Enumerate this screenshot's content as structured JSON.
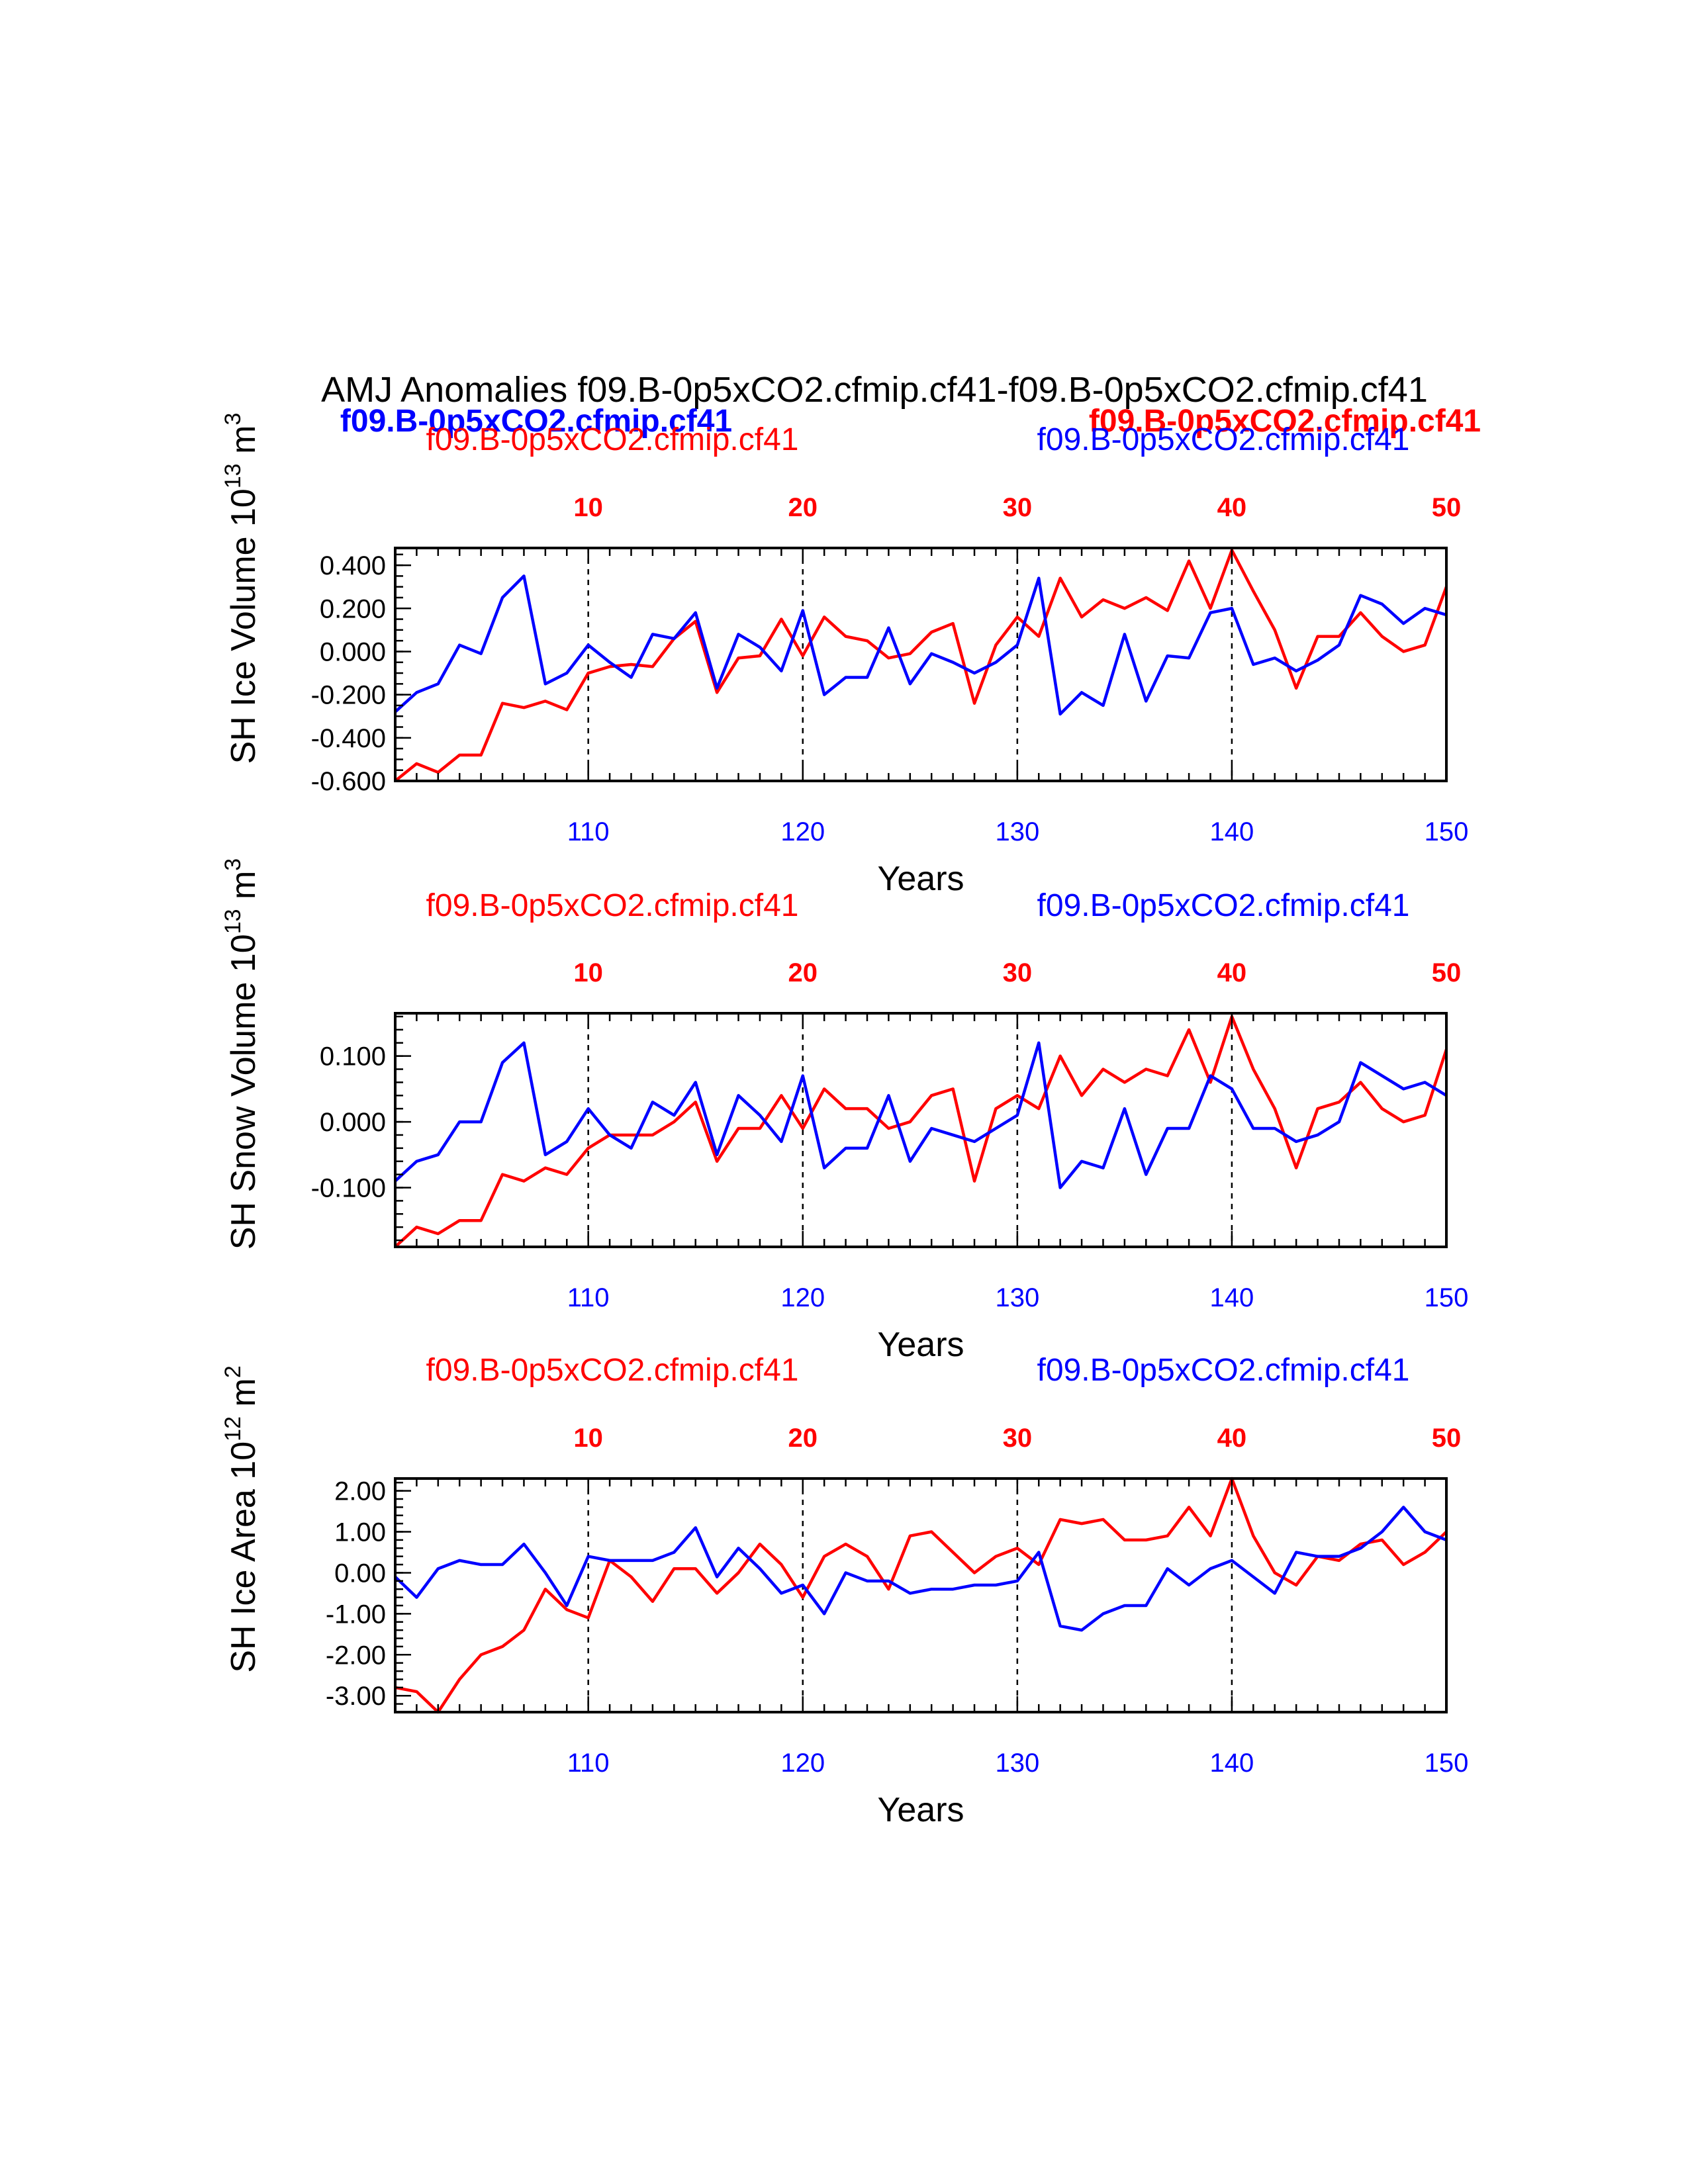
{
  "title": "AMJ Anomalies f09.B-0p5xCO2.cfmip.cf41-f09.B-0p5xCO2.cfmip.cf41",
  "legend": {
    "blue_bold": "f09.B-0p5xCO2.cfmip.cf41",
    "red_bold": "f09.B-0p5xCO2.cfmip.cf41"
  },
  "colors": {
    "series_a": "#ff0000",
    "series_b": "#0000ff",
    "axis": "#000000"
  },
  "chart_data": [
    {
      "type": "line",
      "ylabel_main": "SH Ice Volume 10",
      "ylabel_exp": "13",
      "ylabel_unit": " m",
      "ylabel_unit_exp": "3",
      "xlabel": "Years",
      "top_left_label": "f09.B-0p5xCO2.cfmip.cf41",
      "top_right_label": "f09.B-0p5xCO2.cfmip.cf41",
      "xlim_bottom": [
        101,
        150
      ],
      "xlim_top": [
        1,
        50
      ],
      "x_ticks_bottom": [
        110,
        120,
        130,
        140,
        150
      ],
      "x_ticks_top": [
        10,
        20,
        30,
        40,
        50
      ],
      "ylim": [
        -0.6,
        0.48
      ],
      "y_ticks": [
        -0.6,
        -0.4,
        -0.2,
        0.0,
        0.2,
        0.4
      ],
      "y_tick_labels": [
        "-0.600",
        "-0.400",
        "-0.200",
        "0.000",
        "0.200",
        "0.400"
      ],
      "y_minor_step": 0.05,
      "series": [
        {
          "values": [
            -0.6,
            -0.52,
            -0.56,
            -0.48,
            -0.48,
            -0.24,
            -0.26,
            -0.23,
            -0.27,
            -0.1,
            -0.07,
            -0.06,
            -0.07,
            0.06,
            0.14,
            -0.19,
            -0.03,
            -0.02,
            0.15,
            -0.02,
            0.16,
            0.07,
            0.05,
            -0.03,
            -0.01,
            0.09,
            0.13,
            -0.24,
            0.03,
            0.16,
            0.07,
            0.34,
            0.16,
            0.24,
            0.2,
            0.25,
            0.19,
            0.42,
            0.2,
            0.47,
            0.28,
            0.1,
            -0.17,
            0.07,
            0.07,
            0.18,
            0.07,
            0.0,
            0.03,
            0.3
          ]
        },
        {
          "values": [
            -0.28,
            -0.19,
            -0.15,
            0.03,
            -0.01,
            0.25,
            0.35,
            -0.15,
            -0.1,
            0.03,
            -0.05,
            -0.12,
            0.08,
            0.06,
            0.18,
            -0.17,
            0.08,
            0.02,
            -0.09,
            0.19,
            -0.2,
            -0.12,
            -0.12,
            0.11,
            -0.15,
            -0.01,
            -0.05,
            -0.1,
            -0.05,
            0.03,
            0.34,
            -0.29,
            -0.19,
            -0.25,
            0.08,
            -0.23,
            -0.02,
            -0.03,
            0.18,
            0.2,
            -0.06,
            -0.03,
            -0.09,
            -0.04,
            0.03,
            0.26,
            0.22,
            0.13,
            0.2,
            0.17
          ]
        }
      ]
    },
    {
      "type": "line",
      "ylabel_main": "SH Snow Volume 10",
      "ylabel_exp": "13",
      "ylabel_unit": " m",
      "ylabel_unit_exp": "3",
      "xlabel": "Years",
      "top_left_label": "f09.B-0p5xCO2.cfmip.cf41",
      "top_right_label": "f09.B-0p5xCO2.cfmip.cf41",
      "xlim_bottom": [
        101,
        150
      ],
      "xlim_top": [
        1,
        50
      ],
      "x_ticks_bottom": [
        110,
        120,
        130,
        140,
        150
      ],
      "x_ticks_top": [
        10,
        20,
        30,
        40,
        50
      ],
      "ylim": [
        -0.19,
        0.165
      ],
      "y_ticks": [
        -0.1,
        0.0,
        0.1
      ],
      "y_tick_labels": [
        "-0.100",
        "0.000",
        "0.100"
      ],
      "y_minor_step": 0.02,
      "series": [
        {
          "values": [
            -0.19,
            -0.16,
            -0.17,
            -0.15,
            -0.15,
            -0.08,
            -0.09,
            -0.07,
            -0.08,
            -0.04,
            -0.02,
            -0.02,
            -0.02,
            0.0,
            0.03,
            -0.06,
            -0.01,
            -0.01,
            0.04,
            -0.01,
            0.05,
            0.02,
            0.02,
            -0.01,
            0.0,
            0.04,
            0.05,
            -0.09,
            0.02,
            0.04,
            0.02,
            0.1,
            0.04,
            0.08,
            0.06,
            0.08,
            0.07,
            0.14,
            0.06,
            0.16,
            0.08,
            0.02,
            -0.07,
            0.02,
            0.03,
            0.06,
            0.02,
            0.0,
            0.01,
            0.11
          ]
        },
        {
          "values": [
            -0.09,
            -0.06,
            -0.05,
            0.0,
            0.0,
            0.09,
            0.12,
            -0.05,
            -0.03,
            0.02,
            -0.02,
            -0.04,
            0.03,
            0.01,
            0.06,
            -0.05,
            0.04,
            0.01,
            -0.03,
            0.07,
            -0.07,
            -0.04,
            -0.04,
            0.04,
            -0.06,
            -0.01,
            -0.02,
            -0.03,
            -0.01,
            0.01,
            0.12,
            -0.1,
            -0.06,
            -0.07,
            0.02,
            -0.08,
            -0.01,
            -0.01,
            0.07,
            0.05,
            -0.01,
            -0.01,
            -0.03,
            -0.02,
            0.0,
            0.09,
            0.07,
            0.05,
            0.06,
            0.04
          ]
        }
      ]
    },
    {
      "type": "line",
      "ylabel_main": "SH Ice Area 10",
      "ylabel_exp": "12",
      "ylabel_unit": " m",
      "ylabel_unit_exp": "2",
      "xlabel": "Years",
      "top_left_label": "f09.B-0p5xCO2.cfmip.cf41",
      "top_right_label": "f09.B-0p5xCO2.cfmip.cf41",
      "xlim_bottom": [
        101,
        150
      ],
      "xlim_top": [
        1,
        50
      ],
      "x_ticks_bottom": [
        110,
        120,
        130,
        140,
        150
      ],
      "x_ticks_top": [
        10,
        20,
        30,
        40,
        50
      ],
      "ylim": [
        -3.4,
        2.3
      ],
      "y_ticks": [
        -3.0,
        -2.0,
        -1.0,
        0.0,
        1.0,
        2.0
      ],
      "y_tick_labels": [
        "-3.00",
        "-2.00",
        "-1.00",
        "0.00",
        "1.00",
        "2.00"
      ],
      "y_minor_step": 0.2,
      "series": [
        {
          "values": [
            -2.8,
            -2.9,
            -3.4,
            -2.6,
            -2.0,
            -1.8,
            -1.4,
            -0.4,
            -0.9,
            -1.1,
            0.3,
            -0.1,
            -0.7,
            0.1,
            0.1,
            -0.5,
            0.0,
            0.7,
            0.2,
            -0.6,
            0.4,
            0.7,
            0.4,
            -0.4,
            0.9,
            1.0,
            0.5,
            0.0,
            0.4,
            0.6,
            0.2,
            1.3,
            1.2,
            1.3,
            0.8,
            0.8,
            0.9,
            1.6,
            0.9,
            2.3,
            0.9,
            0.0,
            -0.3,
            0.4,
            0.3,
            0.7,
            0.8,
            0.2,
            0.5,
            1.0
          ]
        },
        {
          "values": [
            -0.1,
            -0.6,
            0.1,
            0.3,
            0.2,
            0.2,
            0.7,
            0.0,
            -0.8,
            0.4,
            0.3,
            0.3,
            0.3,
            0.5,
            1.1,
            -0.1,
            0.6,
            0.1,
            -0.5,
            -0.3,
            -1.0,
            0.0,
            -0.2,
            -0.2,
            -0.5,
            -0.4,
            -0.4,
            -0.3,
            -0.3,
            -0.2,
            0.5,
            -1.3,
            -1.4,
            -1.0,
            -0.8,
            -0.8,
            0.1,
            -0.3,
            0.1,
            0.3,
            -0.1,
            -0.5,
            0.5,
            0.4,
            0.4,
            0.6,
            1.0,
            1.6,
            1.0,
            0.8
          ]
        }
      ]
    }
  ]
}
